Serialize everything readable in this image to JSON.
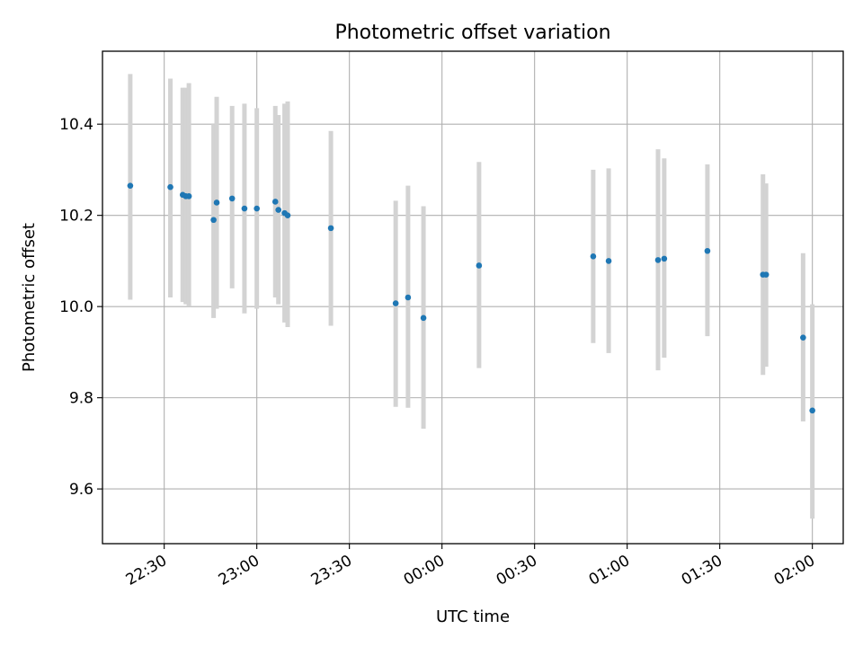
{
  "chart_data": {
    "type": "scatter",
    "title": "Photometric offset variation",
    "xlabel": "UTC time",
    "ylabel": "Photometric offset",
    "x_ticks": [
      "22:30",
      "23:00",
      "23:30",
      "00:00",
      "00:30",
      "01:00",
      "01:30",
      "02:00"
    ],
    "y_ticks": [
      "9.6",
      "9.8",
      "10.0",
      "10.2",
      "10.4"
    ],
    "xlim": [
      "22:10",
      "02:10"
    ],
    "ylim": [
      9.48,
      10.56
    ],
    "grid": true,
    "errorbar_color": "#d3d3d3",
    "marker_color": "#1f77b4",
    "points": [
      {
        "x": "22:19",
        "y": 10.265,
        "err_low": 10.015,
        "err_high": 10.51
      },
      {
        "x": "22:32",
        "y": 10.262,
        "err_low": 10.02,
        "err_high": 10.5
      },
      {
        "x": "22:36",
        "y": 10.245,
        "err_low": 10.01,
        "err_high": 10.48
      },
      {
        "x": "22:37",
        "y": 10.242,
        "err_low": 10.005,
        "err_high": 10.48
      },
      {
        "x": "22:38",
        "y": 10.242,
        "err_low": 10.0,
        "err_high": 10.49
      },
      {
        "x": "22:46",
        "y": 10.19,
        "err_low": 9.975,
        "err_high": 10.4
      },
      {
        "x": "22:47",
        "y": 10.228,
        "err_low": 9.995,
        "err_high": 10.46
      },
      {
        "x": "22:52",
        "y": 10.237,
        "err_low": 10.04,
        "err_high": 10.44
      },
      {
        "x": "22:56",
        "y": 10.215,
        "err_low": 9.985,
        "err_high": 10.445
      },
      {
        "x": "23:00",
        "y": 10.215,
        "err_low": 9.995,
        "err_high": 10.435
      },
      {
        "x": "23:06",
        "y": 10.23,
        "err_low": 10.02,
        "err_high": 10.44
      },
      {
        "x": "23:07",
        "y": 10.212,
        "err_low": 10.005,
        "err_high": 10.42
      },
      {
        "x": "23:09",
        "y": 10.205,
        "err_low": 9.965,
        "err_high": 10.445
      },
      {
        "x": "23:10",
        "y": 10.2,
        "err_low": 9.955,
        "err_high": 10.45
      },
      {
        "x": "23:24",
        "y": 10.172,
        "err_low": 9.958,
        "err_high": 10.385
      },
      {
        "x": "23:45",
        "y": 10.007,
        "err_low": 9.78,
        "err_high": 10.232
      },
      {
        "x": "23:49",
        "y": 10.02,
        "err_low": 9.778,
        "err_high": 10.265
      },
      {
        "x": "23:54",
        "y": 9.975,
        "err_low": 9.732,
        "err_high": 10.22
      },
      {
        "x": "00:12",
        "y": 10.09,
        "err_low": 9.865,
        "err_high": 10.317
      },
      {
        "x": "00:49",
        "y": 10.11,
        "err_low": 9.92,
        "err_high": 10.3
      },
      {
        "x": "00:54",
        "y": 10.1,
        "err_low": 9.898,
        "err_high": 10.303
      },
      {
        "x": "01:10",
        "y": 10.102,
        "err_low": 9.86,
        "err_high": 10.345
      },
      {
        "x": "01:12",
        "y": 10.105,
        "err_low": 9.888,
        "err_high": 10.325
      },
      {
        "x": "01:26",
        "y": 10.122,
        "err_low": 9.935,
        "err_high": 10.312
      },
      {
        "x": "01:44",
        "y": 10.07,
        "err_low": 9.85,
        "err_high": 10.29
      },
      {
        "x": "01:45",
        "y": 10.07,
        "err_low": 9.868,
        "err_high": 10.27
      },
      {
        "x": "01:57",
        "y": 9.932,
        "err_low": 9.748,
        "err_high": 10.117
      },
      {
        "x": "02:00",
        "y": 9.772,
        "err_low": 9.535,
        "err_high": 10.005
      }
    ]
  }
}
